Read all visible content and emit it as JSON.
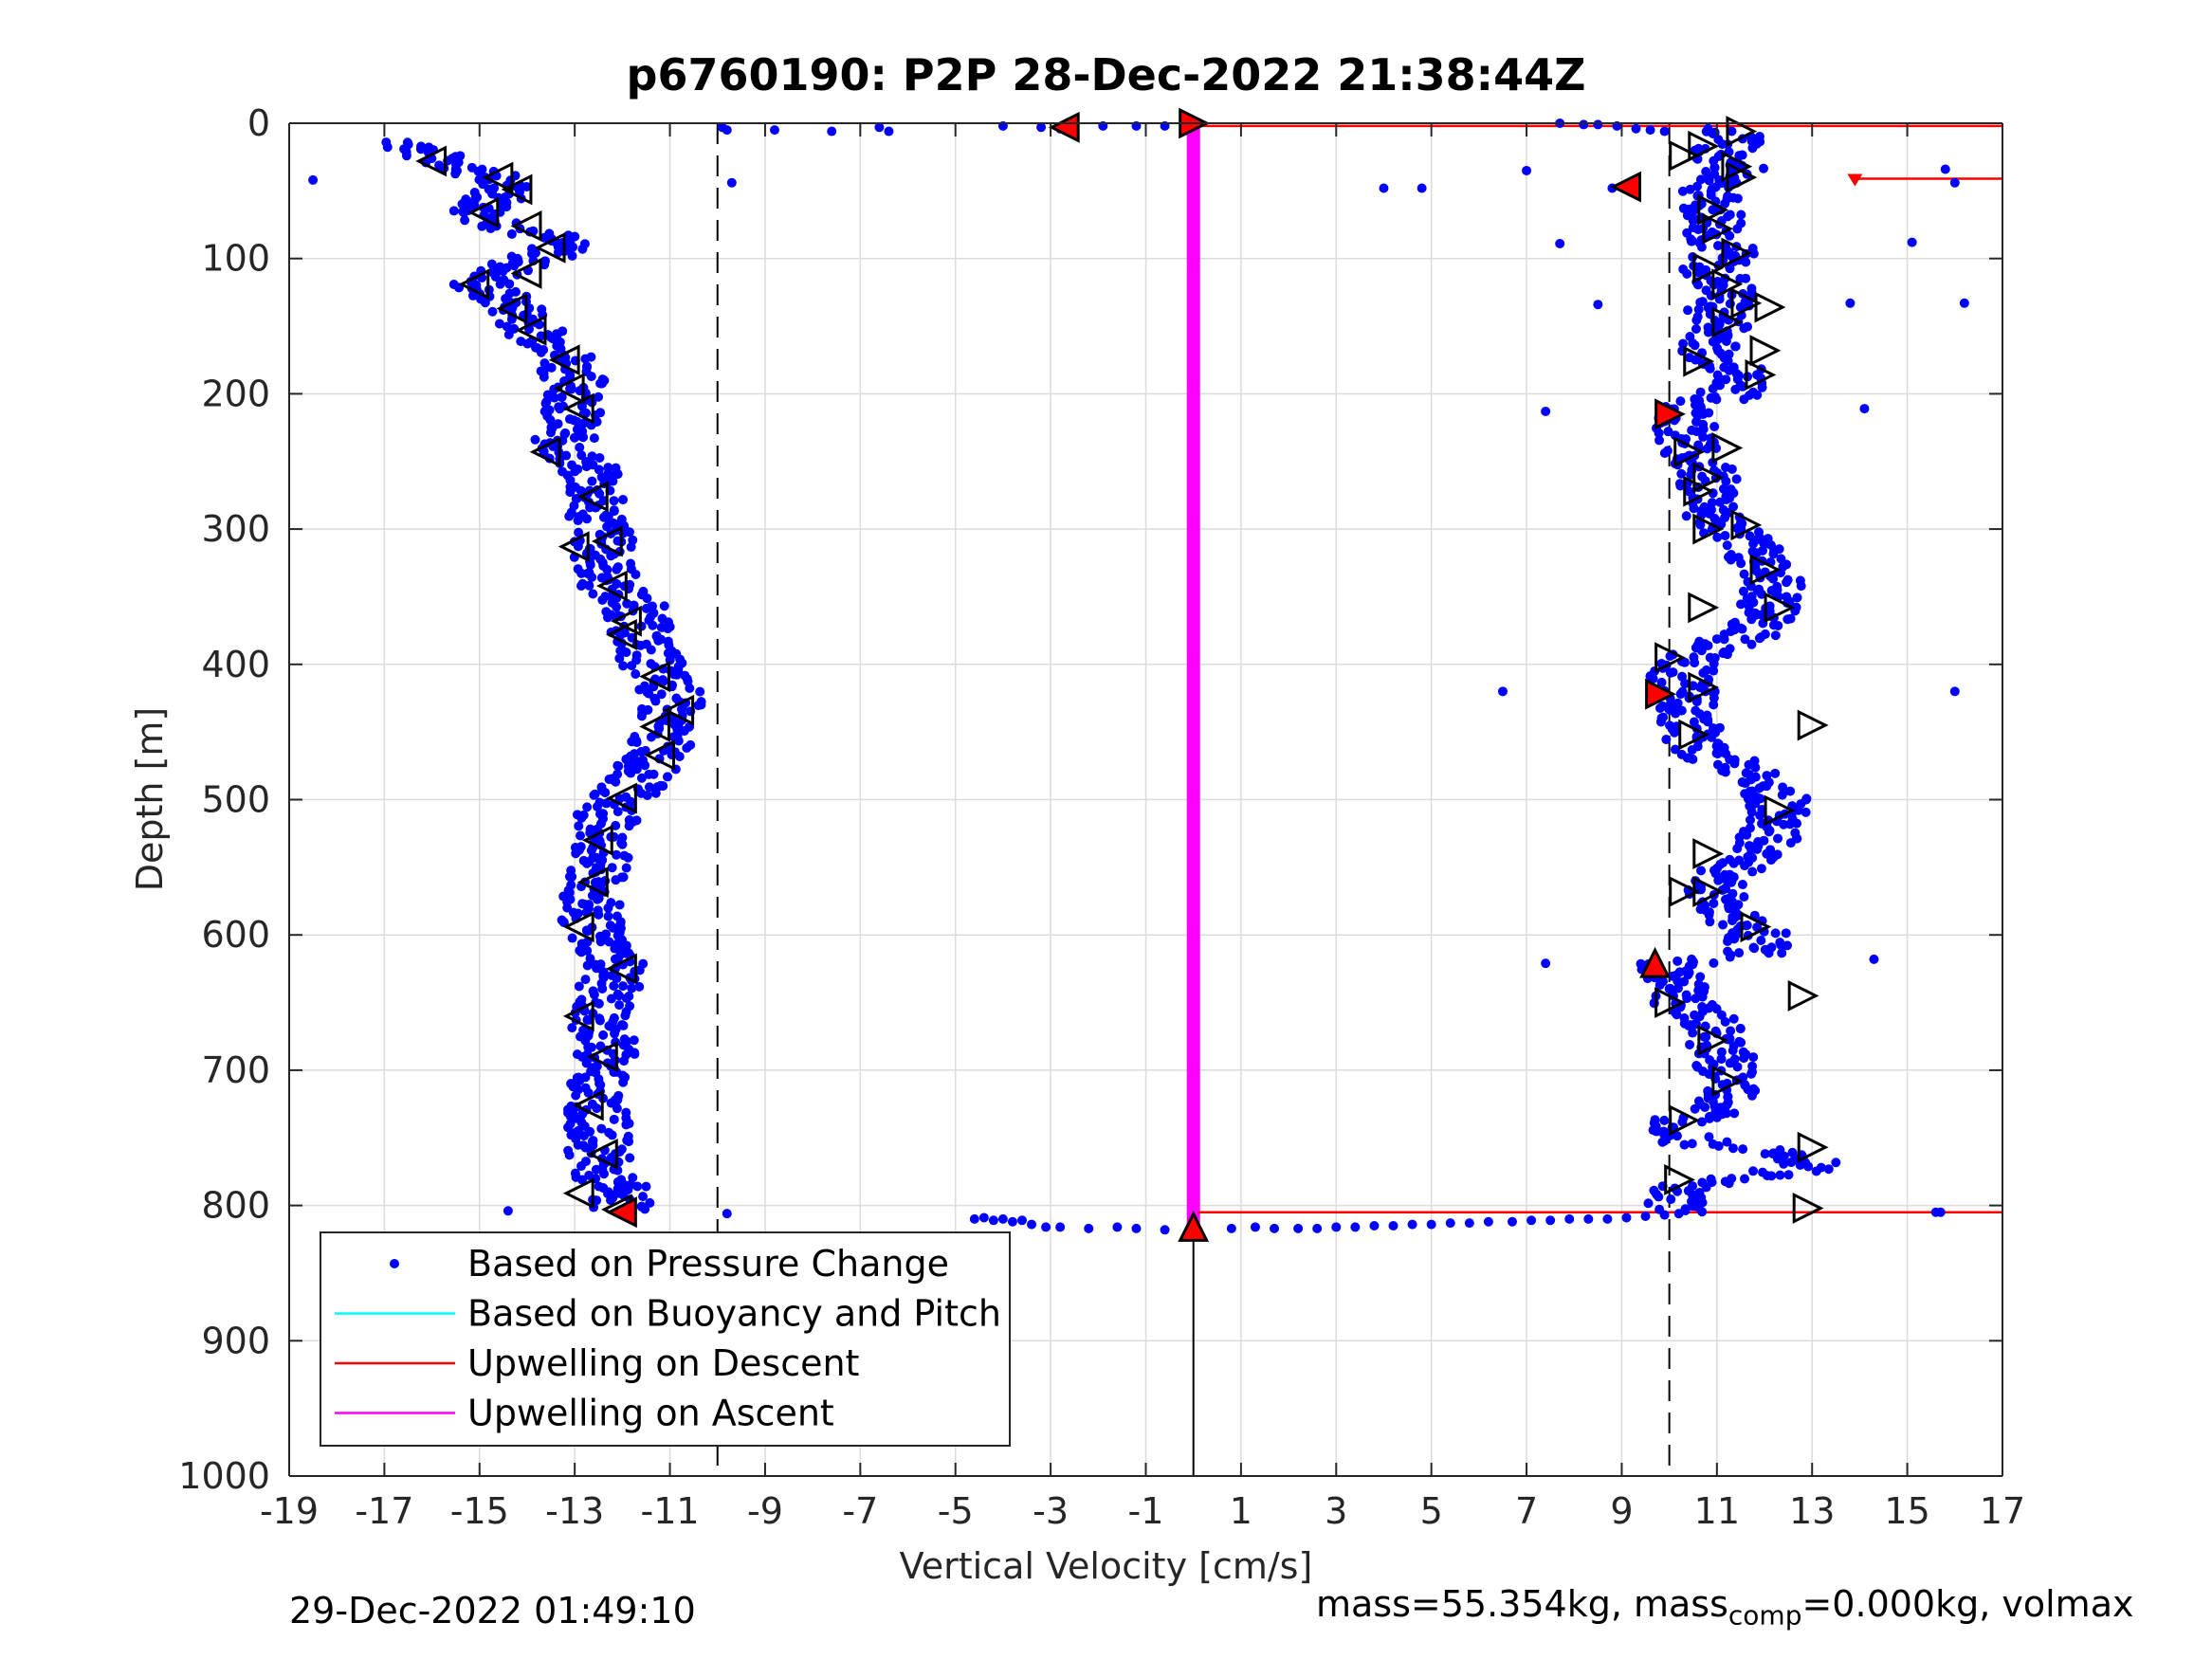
{
  "chart_data": {
    "type": "scatter",
    "title": "p6760190: P2P 28-Dec-2022 21:38:44Z",
    "xlabel": "Vertical Velocity [cm/s]",
    "ylabel": "Depth [m]",
    "xlim": [
      -19,
      17
    ],
    "ylim": [
      0,
      1000
    ],
    "y_reversed": true,
    "xticks": [
      -19,
      -17,
      -15,
      -13,
      -11,
      -9,
      -7,
      -5,
      -3,
      -1,
      1,
      3,
      5,
      7,
      9,
      11,
      13,
      15,
      17
    ],
    "yticks": [
      0,
      100,
      200,
      300,
      400,
      500,
      600,
      700,
      800,
      900,
      1000
    ],
    "grid": true,
    "legend_position": "bottom-left",
    "legend": [
      {
        "label": "Based on Pressure Change",
        "color": "#0000ff",
        "marker": "dot"
      },
      {
        "label": "Based on Buoyancy and Pitch",
        "color": "#00ffff",
        "marker": "line"
      },
      {
        "label": "Upwelling on Descent",
        "color": "#ff0000",
        "marker": "line"
      },
      {
        "label": "Upwelling on Ascent",
        "color": "#ff00ff",
        "marker": "line"
      }
    ],
    "reference_lines": {
      "dashed_x": [
        -10,
        10
      ],
      "solid_x_segment": {
        "x": 0,
        "y": [
          818,
          1000
        ]
      }
    },
    "descent_profile": [
      [
        -16.5,
        14
      ],
      [
        -16.0,
        25
      ],
      [
        -15.2,
        32
      ],
      [
        -14.8,
        40
      ],
      [
        -14.4,
        50
      ],
      [
        -14.7,
        58
      ],
      [
        -15.0,
        66
      ],
      [
        -14.4,
        75
      ],
      [
        -13.5,
        84
      ],
      [
        -13.3,
        94
      ],
      [
        -14.0,
        102
      ],
      [
        -14.5,
        110
      ],
      [
        -15.0,
        120
      ],
      [
        -14.4,
        132
      ],
      [
        -14.0,
        144
      ],
      [
        -13.8,
        156
      ],
      [
        -13.2,
        168
      ],
      [
        -13.1,
        180
      ],
      [
        -12.9,
        196
      ],
      [
        -13.0,
        212
      ],
      [
        -13.3,
        228
      ],
      [
        -13.1,
        244
      ],
      [
        -12.6,
        262
      ],
      [
        -12.6,
        282
      ],
      [
        -12.4,
        300
      ],
      [
        -12.4,
        320
      ],
      [
        -12.3,
        340
      ],
      [
        -11.7,
        360
      ],
      [
        -11.6,
        380
      ],
      [
        -11.3,
        405
      ],
      [
        -10.9,
        425
      ],
      [
        -11.2,
        445
      ],
      [
        -11.2,
        465
      ],
      [
        -11.8,
        490
      ],
      [
        -12.3,
        510
      ],
      [
        -12.4,
        530
      ],
      [
        -12.6,
        555
      ],
      [
        -12.7,
        580
      ],
      [
        -12.6,
        600
      ],
      [
        -12.1,
        620
      ],
      [
        -12.3,
        640
      ],
      [
        -12.5,
        660
      ],
      [
        -12.3,
        680
      ],
      [
        -12.4,
        700
      ],
      [
        -12.5,
        720
      ],
      [
        -12.5,
        740
      ],
      [
        -12.5,
        760
      ],
      [
        -12.4,
        780
      ],
      [
        -12.1,
        795
      ],
      [
        -11.9,
        805
      ]
    ],
    "ascent_profile": [
      [
        11.4,
        5
      ],
      [
        11.3,
        15
      ],
      [
        11.0,
        25
      ],
      [
        11.4,
        35
      ],
      [
        11.0,
        45
      ],
      [
        10.8,
        55
      ],
      [
        10.9,
        65
      ],
      [
        11.0,
        75
      ],
      [
        10.9,
        85
      ],
      [
        11.2,
        95
      ],
      [
        10.9,
        110
      ],
      [
        11.2,
        125
      ],
      [
        11.0,
        140
      ],
      [
        11.1,
        155
      ],
      [
        10.8,
        168
      ],
      [
        11.3,
        180
      ],
      [
        11.6,
        195
      ],
      [
        10.3,
        212
      ],
      [
        10.4,
        230
      ],
      [
        10.5,
        245
      ],
      [
        10.8,
        262
      ],
      [
        10.9,
        278
      ],
      [
        11.0,
        295
      ],
      [
        11.6,
        310
      ],
      [
        12.1,
        330
      ],
      [
        12.2,
        350
      ],
      [
        12.0,
        368
      ],
      [
        11.6,
        380
      ],
      [
        10.4,
        395
      ],
      [
        10.2,
        410
      ],
      [
        10.4,
        428
      ],
      [
        10.5,
        448
      ],
      [
        10.6,
        465
      ],
      [
        12.1,
        485
      ],
      [
        12.3,
        505
      ],
      [
        12.1,
        525
      ],
      [
        11.8,
        540
      ],
      [
        11.2,
        555
      ],
      [
        11.0,
        570
      ],
      [
        11.2,
        585
      ],
      [
        11.9,
        600
      ],
      [
        11.8,
        612
      ],
      [
        9.9,
        622
      ],
      [
        10.1,
        635
      ],
      [
        10.2,
        648
      ],
      [
        10.8,
        665
      ],
      [
        11.0,
        680
      ],
      [
        11.2,
        695
      ],
      [
        11.3,
        712
      ],
      [
        11.1,
        728
      ],
      [
        10.2,
        738
      ],
      [
        10.5,
        752
      ],
      [
        12.8,
        762
      ],
      [
        13.0,
        772
      ],
      [
        10.4,
        785
      ],
      [
        10.1,
        795
      ],
      [
        10.5,
        805
      ]
    ],
    "surface_row": [
      [
        -9.9,
        3
      ],
      [
        -9.8,
        5
      ],
      [
        -8.8,
        5
      ],
      [
        -7.6,
        6
      ],
      [
        -6.6,
        3
      ],
      [
        -6.4,
        6
      ],
      [
        -4.0,
        2
      ],
      [
        -3.2,
        3
      ],
      [
        -2.8,
        4
      ],
      [
        -1.9,
        2
      ],
      [
        -1.2,
        2
      ],
      [
        -0.6,
        2
      ],
      [
        -18.5,
        42
      ],
      [
        -9.7,
        44
      ],
      [
        7.7,
        0
      ],
      [
        8.2,
        1
      ],
      [
        8.5,
        1
      ],
      [
        8.9,
        2
      ],
      [
        9.3,
        4
      ],
      [
        9.6,
        5
      ],
      [
        9.9,
        6
      ],
      [
        7.0,
        35
      ],
      [
        4.0,
        48
      ],
      [
        4.8,
        48
      ],
      [
        8.8,
        48
      ],
      [
        9.1,
        47
      ],
      [
        15.8,
        34
      ],
      [
        16.0,
        44
      ],
      [
        15.1,
        88
      ],
      [
        7.7,
        89
      ],
      [
        8.5,
        134
      ],
      [
        13.8,
        133
      ],
      [
        16.2,
        133
      ],
      [
        7.4,
        213
      ],
      [
        14.1,
        211
      ],
      [
        6.5,
        420
      ],
      [
        16.0,
        420
      ],
      [
        7.4,
        621
      ],
      [
        14.3,
        618
      ],
      [
        15.6,
        805
      ],
      [
        15.7,
        805
      ],
      [
        -12.4,
        787
      ],
      [
        -11.5,
        786
      ],
      [
        -14.4,
        804
      ],
      [
        -9.8,
        806
      ]
    ],
    "bottom_row": [
      [
        -4.6,
        810
      ],
      [
        -4.4,
        809
      ],
      [
        -4.2,
        811
      ],
      [
        -4.0,
        810
      ],
      [
        -3.8,
        812
      ],
      [
        -3.6,
        811
      ],
      [
        -3.4,
        814
      ],
      [
        -3.1,
        816
      ],
      [
        -2.8,
        816
      ],
      [
        -2.2,
        817
      ],
      [
        -1.6,
        816
      ],
      [
        -1.2,
        817
      ],
      [
        -0.6,
        818
      ],
      [
        0.8,
        817
      ],
      [
        1.3,
        816
      ],
      [
        1.7,
        817
      ],
      [
        2.2,
        817
      ],
      [
        2.6,
        817
      ],
      [
        3.0,
        816
      ],
      [
        3.4,
        816
      ],
      [
        3.8,
        815
      ],
      [
        4.2,
        815
      ],
      [
        4.6,
        814
      ],
      [
        5.0,
        814
      ],
      [
        5.4,
        813
      ],
      [
        5.8,
        813
      ],
      [
        6.2,
        812
      ],
      [
        6.7,
        812
      ],
      [
        7.1,
        811
      ],
      [
        7.5,
        811
      ],
      [
        7.9,
        810
      ],
      [
        8.3,
        810
      ],
      [
        8.7,
        810
      ],
      [
        9.1,
        809
      ],
      [
        9.5,
        808
      ],
      [
        9.9,
        807
      ],
      [
        10.2,
        806
      ]
    ],
    "descent_markers_open": [
      [
        -16.0,
        28
      ],
      [
        -14.6,
        40
      ],
      [
        -14.2,
        49
      ],
      [
        -14.9,
        66
      ],
      [
        -14.0,
        76
      ],
      [
        -13.5,
        92
      ],
      [
        -14.0,
        111
      ],
      [
        -15.1,
        119
      ],
      [
        -14.3,
        137
      ],
      [
        -13.9,
        153
      ],
      [
        -13.2,
        175
      ],
      [
        -13.1,
        196
      ],
      [
        -12.9,
        211
      ],
      [
        -13.6,
        243
      ],
      [
        -12.6,
        276
      ],
      [
        -13.0,
        313
      ],
      [
        -12.3,
        309
      ],
      [
        -12.2,
        342
      ],
      [
        -12.0,
        378
      ],
      [
        -11.9,
        368
      ],
      [
        -11.3,
        409
      ],
      [
        -10.8,
        434
      ],
      [
        -11.3,
        446
      ],
      [
        -11.2,
        467
      ],
      [
        -12.0,
        499
      ],
      [
        -12.5,
        530
      ],
      [
        -12.6,
        561
      ],
      [
        -12.9,
        594
      ],
      [
        -12.0,
        625
      ],
      [
        -12.9,
        660
      ],
      [
        -12.4,
        690
      ],
      [
        -12.7,
        726
      ],
      [
        -12.4,
        762
      ],
      [
        -12.9,
        791
      ],
      [
        -12.1,
        803
      ]
    ],
    "ascent_markers_open": [
      [
        11.5,
        6
      ],
      [
        10.7,
        17
      ],
      [
        10.3,
        24
      ],
      [
        11.4,
        32
      ],
      [
        11.5,
        40
      ],
      [
        10.9,
        64
      ],
      [
        11.0,
        78
      ],
      [
        11.4,
        96
      ],
      [
        10.8,
        107
      ],
      [
        11.2,
        119
      ],
      [
        11.6,
        133
      ],
      [
        12.1,
        136
      ],
      [
        11.2,
        147
      ],
      [
        12.0,
        168
      ],
      [
        10.6,
        176
      ],
      [
        11.9,
        186
      ],
      [
        11.2,
        240
      ],
      [
        10.4,
        243
      ],
      [
        10.8,
        262
      ],
      [
        10.6,
        272
      ],
      [
        10.8,
        300
      ],
      [
        11.6,
        297
      ],
      [
        12.0,
        330
      ],
      [
        12.3,
        358
      ],
      [
        10.7,
        358
      ],
      [
        10.0,
        395
      ],
      [
        10.7,
        417
      ],
      [
        13.0,
        445
      ],
      [
        10.5,
        452
      ],
      [
        12.3,
        508
      ],
      [
        10.8,
        540
      ],
      [
        10.3,
        568
      ],
      [
        10.8,
        568
      ],
      [
        11.8,
        594
      ],
      [
        12.8,
        645
      ],
      [
        10.0,
        650
      ],
      [
        10.9,
        678
      ],
      [
        11.2,
        708
      ],
      [
        10.3,
        737
      ],
      [
        13.0,
        757
      ],
      [
        10.2,
        781
      ],
      [
        12.9,
        802
      ]
    ],
    "red_markers_left": [
      [
        -2.7,
        3
      ],
      [
        9.1,
        47
      ],
      [
        -12.0,
        805
      ]
    ],
    "red_markers_right": [
      [
        0,
        0
      ],
      [
        10.0,
        215
      ],
      [
        9.8,
        422
      ]
    ],
    "red_markers_up": [
      [
        9.7,
        621
      ],
      [
        0,
        816
      ]
    ],
    "upwelling_descent": [
      {
        "x": [
          0.1,
          17
        ],
        "y": [
          2,
          2
        ]
      },
      {
        "x": [
          13.9,
          17
        ],
        "y": [
          41,
          41
        ],
        "marker_at_start": "triangle-down"
      },
      {
        "x": [
          0.1,
          17
        ],
        "y": [
          805,
          805
        ]
      }
    ],
    "upwelling_ascent": {
      "x": 0,
      "y": [
        2,
        818
      ]
    }
  },
  "footer": {
    "timestamp": "29-Dec-2022 01:49:10",
    "mass_prefix": "mass=55.354kg, mass",
    "mass_sub": "comp",
    "mass_suffix": "=0.000kg, volmax"
  },
  "colors": {
    "pressure": "#0000ff",
    "buoyancy": "#00ffff",
    "descent": "#ff0000",
    "ascent": "#ff00ff",
    "grid": "#dcdcdc",
    "axis": "#262626"
  }
}
